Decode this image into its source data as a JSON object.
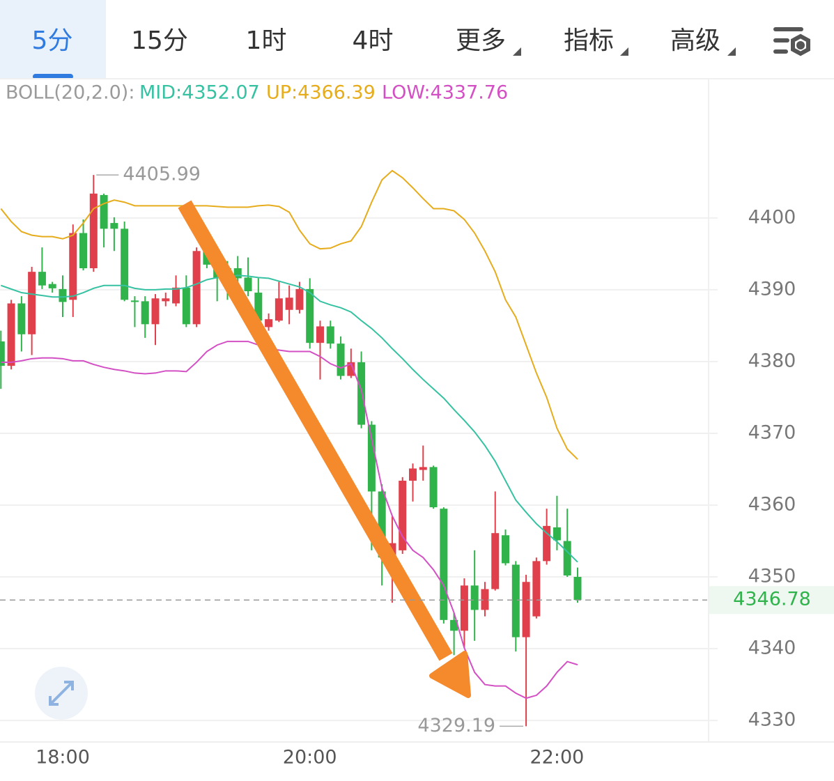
{
  "tabs": {
    "items": [
      "5分",
      "15分",
      "1时",
      "4时",
      "更多",
      "指标",
      "高级"
    ],
    "active": 0
  },
  "chart_data": {
    "type": "candlestick",
    "indicator": "BOLL(20,2.0):",
    "up_color": "#e0404c",
    "down_color": "#2fb34a",
    "categories": [
      null,
      null,
      null,
      null,
      null,
      null,
      "18:00",
      null,
      null,
      null,
      null,
      null,
      null,
      null,
      null,
      null,
      null,
      null,
      null,
      null,
      null,
      null,
      null,
      null,
      null,
      null,
      null,
      null,
      null,
      null,
      "20:00",
      null,
      null,
      null,
      null,
      null,
      null,
      null,
      null,
      null,
      null,
      null,
      null,
      null,
      null,
      null,
      null,
      null,
      null,
      null,
      null,
      null,
      null,
      null,
      "22:00",
      null,
      null
    ],
    "open": [
      4382.8,
      4379.4,
      4388.1,
      4383.8,
      4392.5,
      4390.8,
      4390.1,
      4388.6,
      4397.9,
      4393.0,
      4403.2,
      4399.3,
      4398.5,
      4388.5,
      4388.4,
      4385.2,
      4388.4,
      4388.1,
      4390.3,
      4385.2,
      4395.4,
      4393.0,
      4393.0,
      4393.0,
      4391.7,
      4389.6,
      4384.8,
      4385.7,
      4387.2,
      4387.2,
      4390.1,
      4382.6,
      4384.9,
      4382.5,
      4378.0,
      4379.9,
      4371.2,
      4361.9,
      4352.7,
      4353.7,
      4363.4,
      4364.9,
      4365.3,
      4359.5,
      4344.0,
      4342.5,
      4348.8,
      4345.4,
      4348.3,
      4355.8,
      4351.7,
      4341.6,
      4344.5,
      4352.2,
      4356.9,
      4355.0,
      4350.0
    ],
    "high": [
      4384.3,
      4388.6,
      4389.1,
      4393.2,
      4395.9,
      4391.1,
      4392.0,
      4399.1,
      4399.8,
      4405.99,
      4403.4,
      4400.1,
      4399.5,
      4389.1,
      4389.1,
      4389.4,
      4389.6,
      4392.0,
      4392.0,
      4395.9,
      4396.9,
      4394.5,
      4394.0,
      4394.7,
      4394.5,
      4391.6,
      4386.7,
      4391.1,
      4390.6,
      4391.1,
      4391.6,
      4385.7,
      4385.7,
      4383.5,
      4381.8,
      4381.4,
      4371.7,
      4362.9,
      4358.5,
      4363.9,
      4365.8,
      4368.3,
      4365.5,
      4359.7,
      4345.0,
      4349.8,
      4353.7,
      4349.3,
      4361.9,
      4356.6,
      4352.2,
      4350.3,
      4352.7,
      4359.5,
      4361.3,
      4359.5,
      4351.3
    ],
    "low": [
      4376.2,
      4378.9,
      4381.4,
      4380.9,
      4390.1,
      4389.6,
      4386.2,
      4386.2,
      4392.7,
      4392.5,
      4395.9,
      4395.4,
      4388.4,
      4384.8,
      4383.3,
      4382.3,
      4387.7,
      4387.7,
      4384.8,
      4384.8,
      4393.0,
      4388.4,
      4388.6,
      4389.6,
      4389.1,
      4384.8,
      4384.3,
      4385.5,
      4385.2,
      4386.7,
      4381.8,
      4377.5,
      4381.8,
      4377.5,
      4377.7,
      4370.7,
      4353.7,
      4348.8,
      4346.4,
      4353.2,
      4360.5,
      4363.4,
      4359.5,
      4343.5,
      4339.1,
      4340.1,
      4341.1,
      4344.5,
      4348.1,
      4351.6,
      4339.6,
      4329.19,
      4344.2,
      4351.7,
      4353.7,
      4350.0,
      4346.4
    ],
    "close": [
      4379.4,
      4388.1,
      4383.8,
      4392.5,
      4390.6,
      4390.2,
      4388.3,
      4397.9,
      4393.0,
      4403.4,
      4398.5,
      4398.5,
      4388.6,
      4388.3,
      4385.2,
      4388.8,
      4388.8,
      4390.3,
      4385.2,
      4395.4,
      4393.5,
      4391.6,
      4391.7,
      4391.6,
      4389.8,
      4385.7,
      4385.9,
      4388.8,
      4388.9,
      4390.1,
      4382.6,
      4384.9,
      4382.5,
      4378.0,
      4379.9,
      4371.2,
      4361.9,
      4352.7,
      4354.7,
      4363.4,
      4365.1,
      4365.3,
      4359.7,
      4344.0,
      4342.5,
      4348.8,
      4345.4,
      4348.3,
      4356.1,
      4351.9,
      4341.6,
      4349.3,
      4352.2,
      4357.1,
      4355.1,
      4350.2,
      4346.78
    ],
    "bands": [
      {
        "label": "MID:4352.07",
        "color": "#36c2a2",
        "values": [
          4390.6,
          4390.1,
          4389.6,
          4389.4,
          4389.2,
          4389.0,
          4389.0,
          4389.1,
          4389.6,
          4390.2,
          4390.6,
          4390.6,
          4390.6,
          4390.2,
          4390.0,
          4390.0,
          4390.1,
          4390.1,
          4390.3,
          4390.8,
          4391.4,
          4391.7,
          4391.8,
          4392.0,
          4391.9,
          4391.7,
          4391.6,
          4391.2,
          4390.8,
          4390.4,
          4389.6,
          4388.4,
          4387.9,
          4387.5,
          4386.9,
          4385.7,
          4384.6,
          4383.3,
          4381.8,
          4380.4,
          4378.9,
          4377.5,
          4376.2,
          4374.9,
          4373.3,
          4371.8,
          4370.2,
          4368.3,
          4366.1,
          4363.4,
          4360.7,
          4359.0,
          4357.4,
          4356.1,
          4354.9,
          4353.5,
          4352.07
        ]
      },
      {
        "label": "UP:4366.39",
        "color": "#e6ac1c",
        "values": [
          4401.3,
          4399.5,
          4398.1,
          4397.6,
          4397.4,
          4397.4,
          4397.1,
          4397.6,
          4399.3,
          4401.3,
          4402.0,
          4402.5,
          4402.2,
          4401.7,
          4401.7,
          4401.7,
          4401.7,
          4401.7,
          4401.7,
          4401.7,
          4401.7,
          4401.6,
          4401.5,
          4401.5,
          4401.5,
          4401.7,
          4401.8,
          4401.6,
          4400.8,
          4398.3,
          4396.4,
          4395.7,
          4395.8,
          4396.4,
          4396.8,
          4398.8,
          4402.2,
          4405.3,
          4406.6,
          4405.6,
          4404.2,
          4402.7,
          4401.3,
          4401.3,
          4401.0,
          4399.8,
          4397.9,
          4395.4,
          4392.5,
          4388.6,
          4386.2,
          4382.3,
          4378.4,
          4375.0,
          4370.7,
          4367.8,
          4366.39
        ]
      },
      {
        "label": "LOW:4337.76",
        "color": "#d350c4",
        "values": [
          4379.9,
          4379.9,
          4380.1,
          4380.4,
          4380.5,
          4380.5,
          4380.4,
          4380.1,
          4380.1,
          4379.6,
          4379.2,
          4378.9,
          4378.7,
          4378.4,
          4378.3,
          4378.4,
          4378.7,
          4378.7,
          4378.6,
          4379.9,
          4381.4,
          4382.3,
          4382.8,
          4382.8,
          4382.8,
          4382.3,
          4381.8,
          4381.6,
          4381.4,
          4381.4,
          4381.4,
          4380.7,
          4379.7,
          4379.1,
          4379.7,
          4376.0,
          4369.2,
          4362.4,
          4358.5,
          4355.6,
          4353.7,
          4352.7,
          4351.0,
          4348.8,
          4345.0,
          4340.1,
          4336.7,
          4335.0,
          4334.8,
          4334.8,
          4333.8,
          4333.1,
          4333.5,
          4334.8,
          4336.7,
          4338.2,
          4337.76
        ]
      }
    ],
    "ylim": [
      4327,
      4419.4
    ],
    "yticks": [
      4330,
      4340,
      4350,
      4360,
      4370,
      4380,
      4390,
      4400
    ],
    "grid": true
  }
}
